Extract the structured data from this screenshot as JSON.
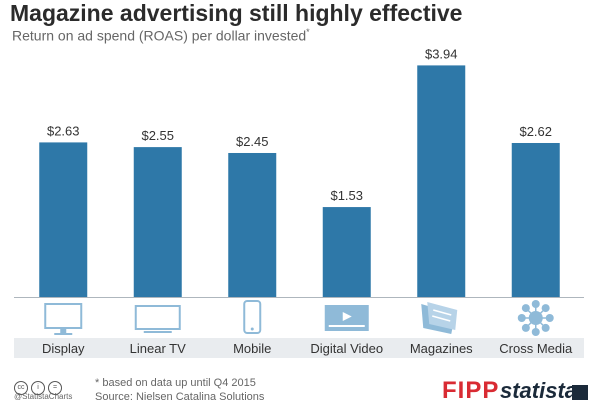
{
  "header": {
    "title": "Magazine advertising still highly effective",
    "subtitle": "Return on ad spend (ROAS) per dollar invested",
    "subtitle_mark": "*"
  },
  "chart_data": {
    "type": "bar",
    "title": "Magazine advertising still highly effective",
    "subtitle": "Return on ad spend (ROAS) per dollar invested*",
    "categories": [
      "Display",
      "Linear TV",
      "Mobile",
      "Digital Video",
      "Magazines",
      "Cross Media"
    ],
    "values": [
      2.63,
      2.55,
      2.45,
      1.53,
      3.94,
      2.62
    ],
    "value_labels": [
      "$2.63",
      "$2.55",
      "$2.45",
      "$1.53",
      "$3.94",
      "$2.62"
    ],
    "category_icons": [
      "monitor-icon",
      "tv-icon",
      "smartphone-icon",
      "video-player-icon",
      "magazine-icon",
      "network-icon"
    ],
    "ylim": [
      0,
      4.1
    ],
    "grid": false,
    "bar_color": "#2e78a8",
    "icon_color": "#8fbad8",
    "label_band_color": "#e9ecef"
  },
  "footer": {
    "note": "* based on data up until Q4 2015",
    "source": "Source: Nielsen Catalina Solutions",
    "handle": "@StatistaCharts",
    "license_icons": [
      "cc-icon",
      "by-icon",
      "nd-icon"
    ],
    "brand_fipp": "FIPP",
    "brand_statista": "statista"
  }
}
